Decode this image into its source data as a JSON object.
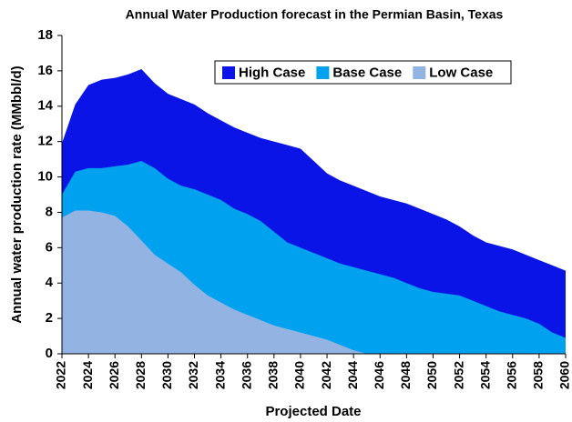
{
  "chart_data": {
    "type": "area",
    "title": "Annual Water Production forecast in the Permian Basin, Texas",
    "x_label": "Projected Date",
    "y_label": "Annual water production rate (MMbbl/d)",
    "x": [
      2022,
      2023,
      2024,
      2025,
      2026,
      2027,
      2028,
      2029,
      2030,
      2031,
      2032,
      2033,
      2034,
      2035,
      2036,
      2037,
      2038,
      2039,
      2040,
      2041,
      2042,
      2043,
      2044,
      2045,
      2046,
      2047,
      2048,
      2049,
      2050,
      2051,
      2052,
      2053,
      2054,
      2055,
      2056,
      2057,
      2058,
      2059,
      2060
    ],
    "series": [
      {
        "name": "High Case",
        "color": "#0a14e6",
        "values": [
          11.9,
          14.1,
          15.2,
          15.5,
          15.6,
          15.8,
          16.1,
          15.3,
          14.7,
          14.4,
          14.1,
          13.6,
          13.2,
          12.8,
          12.5,
          12.2,
          12.0,
          11.8,
          11.6,
          10.9,
          10.2,
          9.8,
          9.5,
          9.2,
          8.9,
          8.7,
          8.5,
          8.2,
          7.9,
          7.6,
          7.2,
          6.7,
          6.3,
          6.1,
          5.9,
          5.6,
          5.3,
          5.0,
          4.7
        ]
      },
      {
        "name": "Base Case",
        "color": "#00a2f0",
        "values": [
          9.0,
          10.3,
          10.5,
          10.5,
          10.6,
          10.7,
          10.9,
          10.5,
          9.9,
          9.5,
          9.3,
          9.0,
          8.7,
          8.2,
          7.9,
          7.5,
          6.9,
          6.3,
          6.0,
          5.7,
          5.4,
          5.1,
          4.9,
          4.7,
          4.5,
          4.3,
          4.0,
          3.7,
          3.5,
          3.4,
          3.3,
          3.0,
          2.7,
          2.4,
          2.2,
          2.0,
          1.7,
          1.2,
          0.9
        ]
      },
      {
        "name": "Low Case",
        "color": "#93b3e3",
        "values": [
          7.7,
          8.1,
          8.1,
          8.0,
          7.8,
          7.2,
          6.4,
          5.6,
          5.1,
          4.6,
          3.9,
          3.3,
          2.9,
          2.5,
          2.2,
          1.9,
          1.6,
          1.4,
          1.2,
          1.0,
          0.8,
          0.5,
          0.2,
          0,
          0,
          0,
          0,
          0,
          0,
          0,
          0,
          0,
          0,
          0,
          0,
          0,
          0,
          0,
          0
        ]
      }
    ],
    "xlim": [
      2022,
      2060
    ],
    "xticks": [
      2022,
      2024,
      2026,
      2028,
      2030,
      2032,
      2034,
      2036,
      2038,
      2040,
      2042,
      2044,
      2046,
      2048,
      2050,
      2052,
      2054,
      2056,
      2058,
      2060
    ],
    "ylim": [
      0,
      18
    ],
    "yticks": [
      0,
      2,
      4,
      6,
      8,
      10,
      12,
      14,
      16,
      18
    ],
    "grid": false,
    "legend": "top-right"
  }
}
